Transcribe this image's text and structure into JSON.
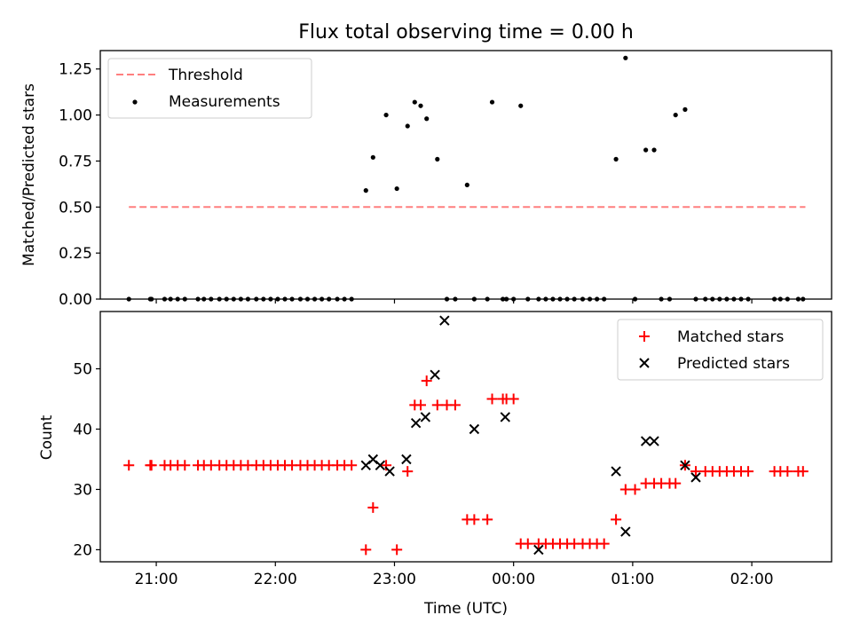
{
  "title": "Flux total observing time = 0.00 h",
  "colors": {
    "threshold": "#ff7f7f",
    "matched": "#ff0000",
    "predicted": "#000000",
    "measurement": "#000000"
  },
  "chart_data": [
    {
      "type": "scatter",
      "ylabel": "Matched/Predicted stars",
      "ylim": [
        0,
        1.35
      ],
      "yticks": [
        "0.00",
        "0.25",
        "0.50",
        "0.75",
        "1.00",
        "1.25"
      ],
      "xlim_hours": [
        20.53,
        26.67
      ],
      "x_hours": [
        20.77,
        20.95,
        20.96,
        21.07,
        21.12,
        21.18,
        21.24,
        21.35,
        21.4,
        21.46,
        21.53,
        21.59,
        21.65,
        21.71,
        21.77,
        21.84,
        21.9,
        21.96,
        22.02,
        22.08,
        22.14,
        22.21,
        22.27,
        22.33,
        22.39,
        22.45,
        22.52,
        22.58,
        22.64,
        22.76,
        22.82,
        22.93,
        23.02,
        23.11,
        23.17,
        23.22,
        23.27,
        23.36,
        23.44,
        23.51,
        23.61,
        23.67,
        23.78,
        23.82,
        23.91,
        23.94,
        24.0,
        24.06,
        24.12,
        24.21,
        24.27,
        24.33,
        24.39,
        24.45,
        24.51,
        24.58,
        24.64,
        24.7,
        24.76,
        24.86,
        24.94,
        25.02,
        25.11,
        25.18,
        25.24,
        25.31,
        25.36,
        25.44,
        25.53,
        25.61,
        25.67,
        25.73,
        25.79,
        25.85,
        25.91,
        25.97,
        26.19,
        26.24,
        26.3,
        26.39,
        26.43
      ],
      "series": [
        {
          "name": "Threshold",
          "style": "dashed",
          "x_range_hours": [
            20.77,
            26.45
          ],
          "value": 0.5
        },
        {
          "name": "Measurements",
          "values": [
            0,
            0,
            0,
            0,
            0,
            0,
            0,
            0,
            0,
            0,
            0,
            0,
            0,
            0,
            0,
            0,
            0,
            0,
            0,
            0,
            0,
            0,
            0,
            0,
            0,
            0,
            0,
            0,
            0,
            0.59,
            0.77,
            1.0,
            0.6,
            0.94,
            1.07,
            1.05,
            0.98,
            0.76,
            0,
            0,
            0.62,
            0,
            0,
            1.07,
            0,
            0,
            0,
            1.05,
            0,
            0,
            0,
            0,
            0,
            0,
            0,
            0,
            0,
            0,
            0,
            0.76,
            1.31,
            0,
            0.81,
            0.81,
            0,
            0,
            1.0,
            1.03,
            0,
            0,
            0,
            0,
            0,
            0,
            0,
            0,
            0,
            0,
            0,
            0,
            0
          ]
        }
      ],
      "legend": "top-left"
    },
    {
      "type": "scatter",
      "xlabel": "Time (UTC)",
      "ylabel": "Count",
      "ylim": [
        18,
        59.5
      ],
      "yticks": [
        "20",
        "30",
        "40",
        "50"
      ],
      "xlim_hours": [
        20.53,
        26.67
      ],
      "xticks_hours": [
        21,
        22,
        23,
        24,
        25,
        26
      ],
      "xtick_labels": [
        "21:00",
        "22:00",
        "23:00",
        "00:00",
        "01:00",
        "02:00"
      ],
      "series": [
        {
          "name": "Matched stars",
          "marker": "+",
          "x_hours": [
            20.77,
            20.95,
            20.96,
            21.07,
            21.12,
            21.18,
            21.24,
            21.35,
            21.4,
            21.46,
            21.53,
            21.59,
            21.65,
            21.71,
            21.77,
            21.84,
            21.9,
            21.96,
            22.02,
            22.08,
            22.14,
            22.21,
            22.27,
            22.33,
            22.39,
            22.45,
            22.52,
            22.58,
            22.64,
            22.76,
            22.82,
            22.93,
            23.02,
            23.11,
            23.17,
            23.22,
            23.27,
            23.36,
            23.44,
            23.51,
            23.61,
            23.67,
            23.78,
            23.82,
            23.91,
            23.94,
            24.0,
            24.06,
            24.12,
            24.21,
            24.27,
            24.33,
            24.39,
            24.45,
            24.51,
            24.58,
            24.64,
            24.7,
            24.76,
            24.86,
            24.94,
            25.02,
            25.11,
            25.18,
            25.24,
            25.31,
            25.36,
            25.44,
            25.53,
            25.61,
            25.67,
            25.73,
            25.79,
            25.85,
            25.91,
            25.97,
            26.19,
            26.24,
            26.3,
            26.39,
            26.43
          ],
          "values": [
            34,
            34,
            34,
            34,
            34,
            34,
            34,
            34,
            34,
            34,
            34,
            34,
            34,
            34,
            34,
            34,
            34,
            34,
            34,
            34,
            34,
            34,
            34,
            34,
            34,
            34,
            34,
            34,
            34,
            20,
            27,
            34,
            20,
            33,
            44,
            44,
            48,
            44,
            44,
            44,
            25,
            25,
            25,
            45,
            45,
            45,
            45,
            21,
            21,
            21,
            21,
            21,
            21,
            21,
            21,
            21,
            21,
            21,
            21,
            25,
            30,
            30,
            31,
            31,
            31,
            31,
            31,
            34,
            33,
            33,
            33,
            33,
            33,
            33,
            33,
            33,
            33,
            33,
            33,
            33,
            33
          ]
        },
        {
          "name": "Predicted stars",
          "marker": "x",
          "x_hours": [
            22.76,
            22.82,
            22.88,
            22.96,
            23.1,
            23.18,
            23.26,
            23.34,
            23.42,
            23.67,
            23.93,
            24.21,
            24.86,
            24.94,
            25.11,
            25.18,
            25.44,
            25.53
          ],
          "values": [
            34,
            35,
            34,
            33,
            35,
            41,
            42,
            49,
            58,
            40,
            42,
            20,
            33,
            23,
            38,
            38,
            34,
            32
          ]
        }
      ],
      "legend": "top-right"
    }
  ]
}
